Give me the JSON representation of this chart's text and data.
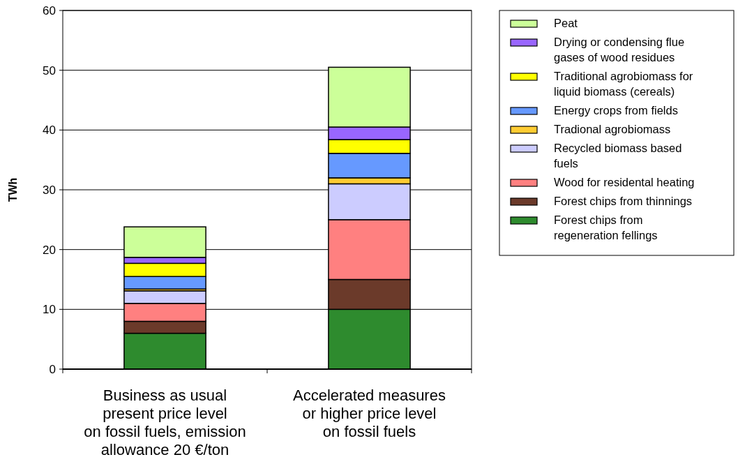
{
  "chart_data": {
    "type": "bar",
    "stacked": true,
    "ylabel": "TWh",
    "categories": [
      "Business as usual\npresent price level\non fossil fuels, emission\nallowance 20 €/ton",
      "Accelerated measures\nor higher price level\non fossil fuels"
    ],
    "ylim": [
      0,
      60
    ],
    "yticks": [
      0,
      10,
      20,
      30,
      40,
      50,
      60
    ],
    "grid": "y",
    "legend": "right",
    "series": [
      {
        "name": "Forest chips from\nregeneration fellings",
        "color": "#2e8b2e",
        "values": [
          6.0,
          10.0
        ]
      },
      {
        "name": "Forest chips from thinnings",
        "color": "#6b3a2a",
        "values": [
          2.0,
          5.0
        ]
      },
      {
        "name": "Wood for residental heating",
        "color": "#ff8080",
        "values": [
          3.0,
          10.0
        ]
      },
      {
        "name": "Recycled biomass based\nfuels",
        "color": "#ccccff",
        "values": [
          2.1,
          6.0
        ]
      },
      {
        "name": "Tradional agrobiomass",
        "color": "#ffcc33",
        "values": [
          0.3,
          1.0
        ]
      },
      {
        "name": "Energy crops from fields",
        "color": "#6699ff",
        "values": [
          2.1,
          4.1
        ]
      },
      {
        "name": "Traditional agrobiomass for\nliquid biomass (cereals)",
        "color": "#ffff00",
        "values": [
          2.2,
          2.3
        ]
      },
      {
        "name": "Drying or condensing flue\ngases of wood residues",
        "color": "#9966ff",
        "values": [
          1.0,
          2.1
        ]
      },
      {
        "name": "Peat",
        "color": "#ccff99",
        "values": [
          5.1,
          10.0
        ]
      }
    ]
  }
}
